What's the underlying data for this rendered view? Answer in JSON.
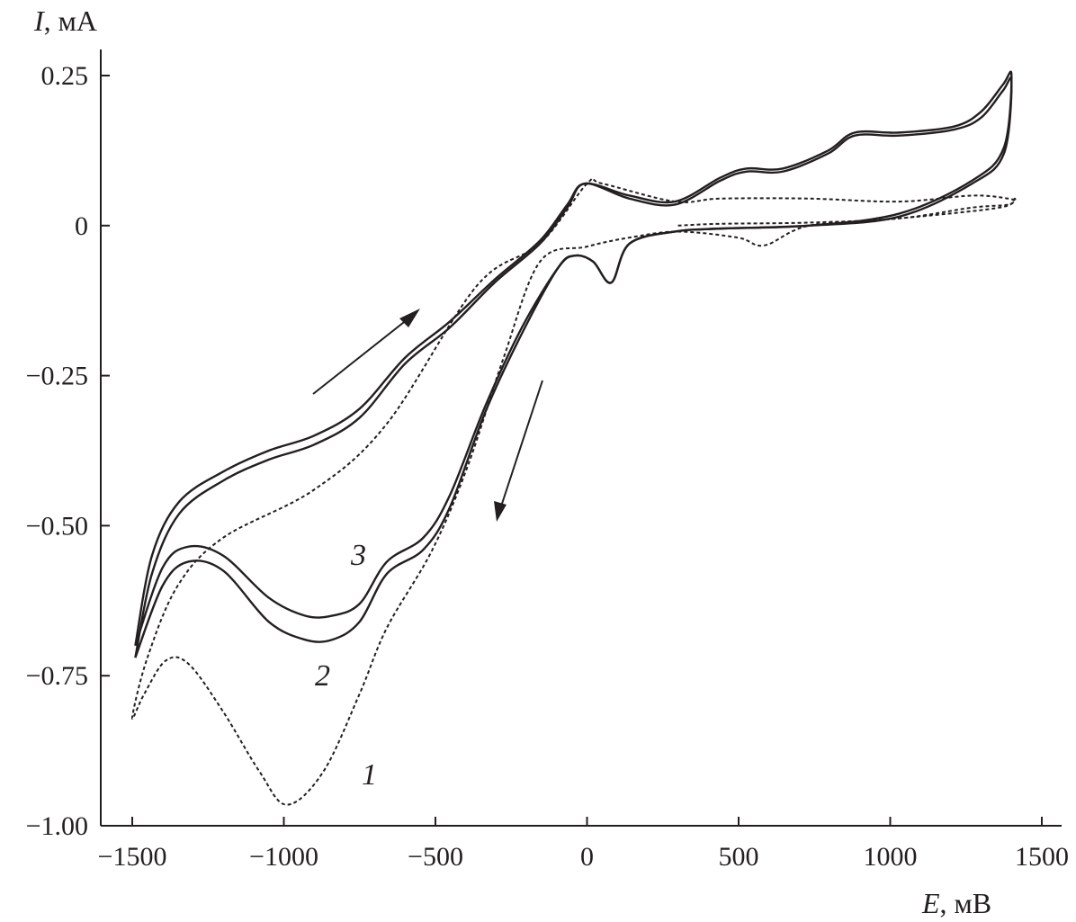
{
  "chart_data": {
    "type": "line",
    "title": "",
    "xlabel": {
      "var": "E",
      "unit": ", мВ"
    },
    "ylabel": {
      "var": "I",
      "unit": ", мА"
    },
    "xlim": [
      -1500,
      1500
    ],
    "ylim": [
      -1.0,
      0.25
    ],
    "x_ticks": [
      -1500,
      -1000,
      -500,
      0,
      500,
      1000,
      1500
    ],
    "x_tick_labels": [
      "−1500",
      "−1000",
      "−500",
      "0",
      "500",
      "1000",
      "1500"
    ],
    "y_ticks": [
      0.25,
      0,
      -0.25,
      -0.5,
      -0.75,
      -1.0
    ],
    "y_tick_labels": [
      "0.25",
      "0",
      "−0.25",
      "−0.50",
      "−0.75",
      "−1.00"
    ],
    "grid": false,
    "series": [
      {
        "name": "1",
        "style": "dashed",
        "x": [
          300,
          440,
          733,
          1030,
          1270,
          1390,
          1410,
          1360,
          1030,
          733,
          585,
          497,
          300,
          140,
          0,
          -155,
          -275,
          -393,
          -510,
          -660,
          -750,
          -870,
          -990,
          -1080,
          -1200,
          -1315,
          -1390,
          -1460,
          -1500,
          -1450,
          -1350,
          -1200,
          -900,
          -660,
          -363,
          -155,
          0,
          50,
          290,
          440,
          733,
          1030,
          1270,
          1390,
          1410
        ],
        "y": [
          0.0,
          0.003,
          0.005,
          0.012,
          0.03,
          0.035,
          0.045,
          0.03,
          0.012,
          0.0,
          -0.033,
          -0.02,
          -0.01,
          -0.02,
          -0.035,
          -0.06,
          -0.22,
          -0.4,
          -0.54,
          -0.67,
          -0.78,
          -0.91,
          -0.965,
          -0.91,
          -0.81,
          -0.73,
          -0.725,
          -0.78,
          -0.82,
          -0.72,
          -0.6,
          -0.52,
          -0.44,
          -0.33,
          -0.1,
          -0.03,
          0.07,
          0.07,
          0.04,
          0.045,
          0.045,
          0.04,
          0.05,
          0.045,
          0.04
        ]
      },
      {
        "name": "2",
        "style": "solid",
        "x": [
          -1490,
          -1435,
          -1345,
          -1200,
          -1050,
          -900,
          -750,
          -600,
          -453,
          -305,
          -155,
          -65,
          -7,
          140,
          290,
          440,
          525,
          645,
          795,
          883,
          1030,
          1210,
          1300,
          1372,
          1400,
          1375,
          1270,
          1030,
          733,
          440,
          290,
          140,
          80,
          20,
          -40,
          -95,
          -215,
          -335,
          -453,
          -540,
          -660,
          -750,
          -840,
          -930,
          -1050,
          -1200,
          -1315,
          -1400,
          -1490
        ],
        "y": [
          -0.72,
          -0.58,
          -0.48,
          -0.425,
          -0.39,
          -0.365,
          -0.32,
          -0.23,
          -0.17,
          -0.095,
          -0.03,
          0.03,
          0.07,
          0.045,
          0.035,
          0.075,
          0.09,
          0.09,
          0.12,
          0.15,
          0.15,
          0.16,
          0.18,
          0.225,
          0.24,
          0.12,
          0.07,
          0.015,
          0.0,
          -0.005,
          -0.01,
          -0.03,
          -0.095,
          -0.06,
          -0.05,
          -0.07,
          -0.18,
          -0.31,
          -0.47,
          -0.54,
          -0.58,
          -0.66,
          -0.69,
          -0.69,
          -0.66,
          -0.575,
          -0.56,
          -0.6,
          -0.72
        ]
      },
      {
        "name": "3",
        "style": "solid",
        "x": [
          -1490,
          -1435,
          -1345,
          -1200,
          -1050,
          -900,
          -750,
          -600,
          -453,
          -305,
          -155,
          -65,
          -7,
          140,
          290,
          440,
          525,
          645,
          795,
          883,
          1030,
          1210,
          1300,
          1372,
          1400,
          1375,
          1270,
          1030,
          733,
          440,
          290,
          140,
          80,
          20,
          -40,
          -95,
          -215,
          -335,
          -453,
          -540,
          -660,
          -750,
          -840,
          -930,
          -1050,
          -1200,
          -1315,
          -1400,
          -1490
        ],
        "y": [
          -0.7,
          -0.55,
          -0.46,
          -0.41,
          -0.375,
          -0.35,
          -0.305,
          -0.22,
          -0.16,
          -0.09,
          -0.025,
          0.035,
          0.07,
          0.05,
          0.04,
          0.08,
          0.095,
          0.095,
          0.125,
          0.155,
          0.155,
          0.165,
          0.19,
          0.235,
          0.25,
          0.13,
          0.075,
          0.02,
          0.0,
          -0.005,
          -0.01,
          -0.03,
          -0.095,
          -0.06,
          -0.05,
          -0.07,
          -0.17,
          -0.3,
          -0.45,
          -0.52,
          -0.56,
          -0.63,
          -0.65,
          -0.65,
          -0.62,
          -0.55,
          -0.535,
          -0.57,
          -0.7
        ]
      }
    ],
    "annotations": [
      "1",
      "2",
      "3"
    ]
  }
}
